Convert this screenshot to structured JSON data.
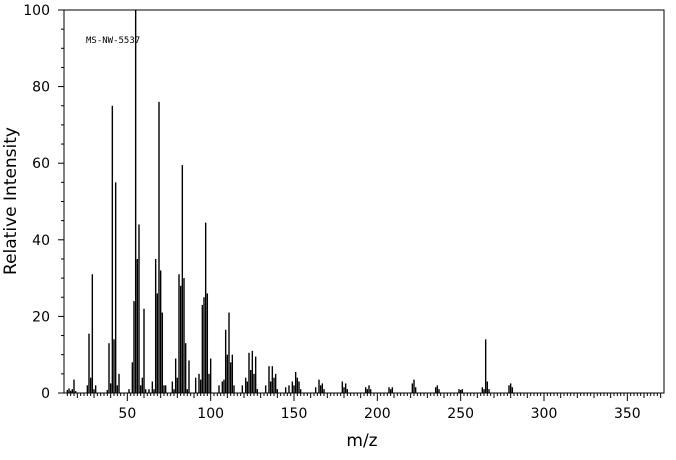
{
  "chart_data": {
    "type": "bar",
    "title": "",
    "annotation": "MS-NW-5537",
    "xlabel": "m/z",
    "ylabel": "Relative Intensity",
    "xlim": [
      12,
      372
    ],
    "ylim": [
      0,
      100
    ],
    "x_ticks": [
      50,
      100,
      150,
      200,
      250,
      300,
      350
    ],
    "y_ticks": [
      0,
      20,
      40,
      60,
      80,
      100
    ],
    "grid": false,
    "legend": "none",
    "peaks": [
      [
        14,
        0.8
      ],
      [
        15,
        1.2
      ],
      [
        16,
        0.6
      ],
      [
        17,
        1.0
      ],
      [
        18,
        3.5
      ],
      [
        19,
        0.5
      ],
      [
        26,
        2.0
      ],
      [
        27,
        15.5
      ],
      [
        28,
        4.0
      ],
      [
        29,
        31.0
      ],
      [
        30,
        1.0
      ],
      [
        31,
        2.0
      ],
      [
        38,
        0.8
      ],
      [
        39,
        13.0
      ],
      [
        40,
        2.5
      ],
      [
        41,
        75.0
      ],
      [
        42,
        14.0
      ],
      [
        43,
        55.0
      ],
      [
        44,
        2.0
      ],
      [
        45,
        5.0
      ],
      [
        51,
        1.0
      ],
      [
        53,
        8.0
      ],
      [
        54,
        24.0
      ],
      [
        55,
        100.0
      ],
      [
        56,
        35.0
      ],
      [
        57,
        44.0
      ],
      [
        58,
        2.0
      ],
      [
        59,
        4.0
      ],
      [
        60,
        22.0
      ],
      [
        61,
        1.0
      ],
      [
        63,
        1.0
      ],
      [
        65,
        3.0
      ],
      [
        66,
        1.0
      ],
      [
        67,
        35.0
      ],
      [
        68,
        26.0
      ],
      [
        69,
        76.0
      ],
      [
        70,
        32.0
      ],
      [
        71,
        21.0
      ],
      [
        72,
        2.0
      ],
      [
        73,
        2.0
      ],
      [
        77,
        3.0
      ],
      [
        78,
        1.0
      ],
      [
        79,
        9.0
      ],
      [
        80,
        4.0
      ],
      [
        81,
        31.0
      ],
      [
        82,
        28.0
      ],
      [
        83,
        59.5
      ],
      [
        84,
        30.0
      ],
      [
        85,
        13.0
      ],
      [
        86,
        1.0
      ],
      [
        87,
        8.5
      ],
      [
        91,
        4.0
      ],
      [
        93,
        5.0
      ],
      [
        94,
        3.5
      ],
      [
        95,
        23.0
      ],
      [
        96,
        25.0
      ],
      [
        97,
        44.5
      ],
      [
        98,
        26.0
      ],
      [
        99,
        5.0
      ],
      [
        100,
        9.0
      ],
      [
        105,
        2.0
      ],
      [
        107,
        3.0
      ],
      [
        108,
        3.5
      ],
      [
        109,
        16.5
      ],
      [
        110,
        10.0
      ],
      [
        111,
        21.0
      ],
      [
        112,
        8.0
      ],
      [
        113,
        10.0
      ],
      [
        114,
        2.0
      ],
      [
        119,
        2.0
      ],
      [
        121,
        4.0
      ],
      [
        122,
        3.0
      ],
      [
        123,
        10.5
      ],
      [
        124,
        6.0
      ],
      [
        125,
        11.0
      ],
      [
        126,
        5.0
      ],
      [
        127,
        9.5
      ],
      [
        128,
        1.0
      ],
      [
        133,
        2.0
      ],
      [
        135,
        7.0
      ],
      [
        136,
        3.0
      ],
      [
        137,
        7.0
      ],
      [
        138,
        4.0
      ],
      [
        139,
        5.0
      ],
      [
        140,
        1.0
      ],
      [
        145,
        1.5
      ],
      [
        147,
        2.0
      ],
      [
        149,
        3.0
      ],
      [
        150,
        2.0
      ],
      [
        151,
        5.5
      ],
      [
        152,
        4.0
      ],
      [
        153,
        3.0
      ],
      [
        154,
        1.0
      ],
      [
        163,
        1.5
      ],
      [
        165,
        3.5
      ],
      [
        166,
        2.0
      ],
      [
        167,
        2.5
      ],
      [
        168,
        1.0
      ],
      [
        179,
        3.0
      ],
      [
        180,
        1.5
      ],
      [
        181,
        2.5
      ],
      [
        182,
        1.0
      ],
      [
        193,
        1.5
      ],
      [
        194,
        1.0
      ],
      [
        195,
        2.0
      ],
      [
        196,
        1.0
      ],
      [
        207,
        1.5
      ],
      [
        208,
        1.0
      ],
      [
        209,
        1.5
      ],
      [
        221,
        2.5
      ],
      [
        222,
        3.5
      ],
      [
        223,
        1.5
      ],
      [
        235,
        1.5
      ],
      [
        236,
        2.0
      ],
      [
        237,
        1.0
      ],
      [
        249,
        1.0
      ],
      [
        250,
        0.8
      ],
      [
        251,
        1.0
      ],
      [
        263,
        1.5
      ],
      [
        264,
        1.0
      ],
      [
        265,
        14.0
      ],
      [
        266,
        3.0
      ],
      [
        267,
        1.0
      ],
      [
        279,
        2.0
      ],
      [
        280,
        2.5
      ],
      [
        281,
        1.5
      ]
    ]
  }
}
